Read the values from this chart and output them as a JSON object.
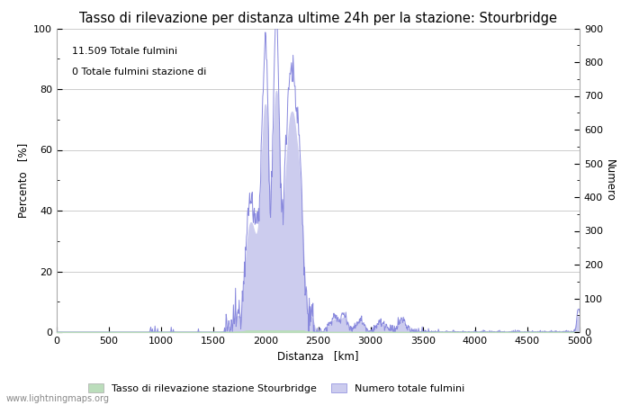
{
  "title": "Tasso di rilevazione per distanza ultime 24h per la stazione: Stourbridge",
  "xlabel": "Distanza   [km]",
  "ylabel_left": "Percento   [%]",
  "ylabel_right": "Numero",
  "annotation_line1": "11.509 Totale fulmini",
  "annotation_line2": "0 Totale fulmini stazione di",
  "watermark": "www.lightningmaps.org",
  "xlim": [
    0,
    5000
  ],
  "ylim_left": [
    0,
    100
  ],
  "ylim_right": [
    0,
    900
  ],
  "xticks": [
    0,
    500,
    1000,
    1500,
    2000,
    2500,
    3000,
    3500,
    4000,
    4500,
    5000
  ],
  "yticks_left": [
    0,
    20,
    40,
    60,
    80,
    100
  ],
  "yticks_right": [
    0,
    100,
    200,
    300,
    400,
    500,
    600,
    700,
    800,
    900
  ],
  "legend_label_green": "Tasso di rilevazione stazione Stourbridge",
  "legend_label_blue": "Numero totale fulmini",
  "line_color": "#8888dd",
  "fill_color": "#ccccee",
  "green_fill_color": "#bbddbb",
  "background_color": "#ffffff",
  "grid_color": "#cccccc",
  "title_fontsize": 10.5,
  "axis_fontsize": 8.5,
  "tick_fontsize": 8,
  "annot_fontsize": 8
}
